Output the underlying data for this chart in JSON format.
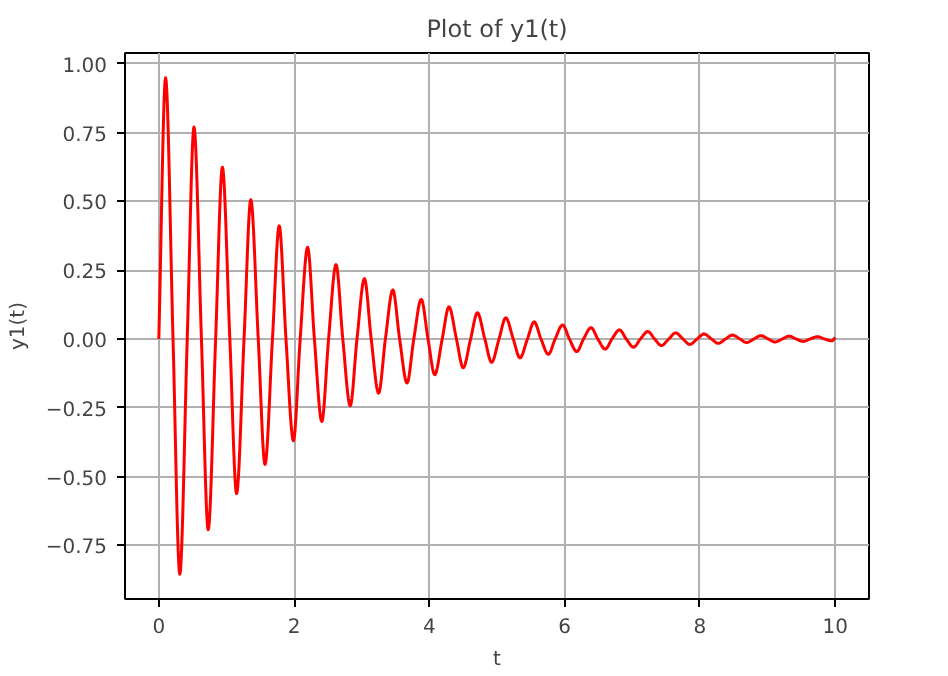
{
  "chart_data": {
    "type": "line",
    "title": "Plot of y1(t)",
    "xlabel": "t",
    "ylabel": "y1(t)",
    "x": [
      0,
      0.1,
      0.21,
      0.31,
      0.42,
      0.52,
      0.63,
      0.73,
      0.84,
      0.94,
      1.05,
      1.15,
      1.26,
      1.36,
      1.47,
      1.57,
      1.68,
      1.78,
      1.88,
      1.99,
      2.09,
      2.2,
      2.3,
      2.41,
      2.51,
      2.62,
      2.72,
      2.83,
      2.93,
      3.04,
      3.14,
      3.25,
      3.35,
      3.46,
      3.56,
      3.67,
      3.77,
      3.88,
      3.98,
      4.08,
      4.19,
      4.29,
      4.4,
      4.5,
      4.61,
      4.71,
      4.82,
      4.92,
      5.03,
      5.13,
      5.24,
      5.34,
      5.45,
      5.55,
      5.65,
      5.76,
      5.86,
      5.97,
      6.07,
      6.18,
      6.28,
      6.39,
      6.49,
      6.6,
      6.7,
      6.81,
      6.91,
      7.02,
      7.12,
      7.23,
      7.33,
      7.43,
      7.54,
      7.64,
      7.75,
      7.85,
      7.96,
      8.06,
      8.17,
      8.27,
      8.38,
      8.48,
      8.59,
      8.69,
      8.8,
      8.9,
      9.01,
      9.11,
      9.22,
      9.32,
      9.42,
      9.53,
      9.63,
      9.74,
      9.84,
      9.95,
      10.0
    ],
    "series": [
      {
        "color": "#ff0000",
        "values": [
          0,
          0.949,
          0,
          -0.855,
          0,
          0.77,
          0,
          -0.693,
          0,
          0.624,
          0,
          -0.562,
          0,
          0.506,
          0,
          -0.456,
          0,
          0.411,
          0,
          -0.37,
          0,
          0.333,
          0,
          -0.3,
          0,
          0.27,
          0,
          -0.243,
          0,
          0.219,
          0,
          -0.197,
          0,
          0.178,
          0,
          -0.16,
          0,
          0.144,
          0,
          -0.13,
          0,
          0.117,
          0,
          -0.105,
          0,
          0.095,
          0,
          -0.085,
          0,
          0.077,
          0,
          -0.069,
          0,
          0.062,
          0,
          -0.056,
          0,
          0.051,
          0,
          -0.046,
          0,
          0.041,
          0,
          -0.037,
          0,
          0.033,
          0,
          -0.03,
          0,
          0.027,
          0,
          -0.024,
          0,
          0.022,
          0,
          -0.02,
          0,
          0.018,
          0,
          -0.016,
          0,
          0.014,
          0,
          -0.013,
          0,
          0.012,
          0,
          -0.011,
          0,
          0.01,
          0,
          -0.009,
          0,
          0.008,
          0,
          -0.007,
          0.005
        ]
      }
    ],
    "xlim": [
      -0.5,
      10.5
    ],
    "ylim": [
      -0.945,
      1.039
    ],
    "xticks": [
      0,
      2,
      4,
      6,
      8,
      10
    ],
    "yticks": [
      {
        "value": -0.75,
        "label": "−0.75"
      },
      {
        "value": -0.5,
        "label": "−0.50"
      },
      {
        "value": -0.25,
        "label": "−0.25"
      },
      {
        "value": 0,
        "label": "0.00"
      },
      {
        "value": 0.25,
        "label": "0.25"
      },
      {
        "value": 0.5,
        "label": "0.50"
      },
      {
        "value": 0.75,
        "label": "0.75"
      },
      {
        "value": 1,
        "label": "1.00"
      }
    ],
    "grid": true
  }
}
